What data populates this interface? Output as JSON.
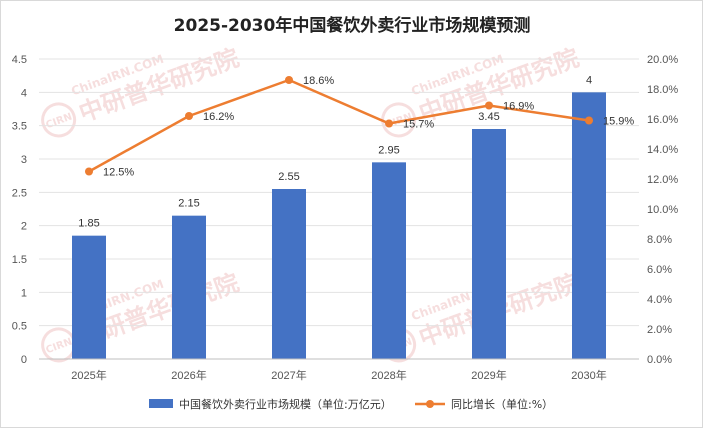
{
  "chart_data": {
    "type": "bar+line",
    "title": "2025-2030年中国餐饮外卖行业市场规模预测",
    "categories": [
      "2025年",
      "2026年",
      "2027年",
      "2028年",
      "2029年",
      "2030年"
    ],
    "series": [
      {
        "name": "中国餐饮外卖行业市场规模（单位:万亿元）",
        "type": "bar",
        "axis": "left",
        "color": "#4472C4",
        "values": [
          1.85,
          2.15,
          2.55,
          2.95,
          3.45,
          4
        ],
        "labels": [
          "1.85",
          "2.15",
          "2.55",
          "2.95",
          "3.45",
          "4"
        ]
      },
      {
        "name": "同比增长（单位:%）",
        "type": "line",
        "axis": "right",
        "color": "#ED7D31",
        "values": [
          12.5,
          16.2,
          18.6,
          15.7,
          16.9,
          15.9
        ],
        "labels": [
          "12.5%",
          "16.2%",
          "18.6%",
          "15.7%",
          "16.9%",
          "15.9%"
        ]
      }
    ],
    "y_left": {
      "range": [
        0,
        4.5
      ],
      "ticks": [
        0,
        0.5,
        1,
        1.5,
        2,
        2.5,
        3,
        3.5,
        4,
        4.5
      ],
      "tick_labels": [
        "0",
        "0.5",
        "1",
        "1.5",
        "2",
        "2.5",
        "3",
        "3.5",
        "4",
        "4.5"
      ]
    },
    "y_right": {
      "range": [
        0,
        20
      ],
      "ticks": [
        0,
        2,
        4,
        6,
        8,
        10,
        12,
        14,
        16,
        18,
        20
      ],
      "tick_labels": [
        "0.0%",
        "2.0%",
        "4.0%",
        "6.0%",
        "8.0%",
        "10.0%",
        "12.0%",
        "14.0%",
        "16.0%",
        "18.0%",
        "20.0%"
      ]
    },
    "grid": "horizontal",
    "legend_position": "bottom-center"
  },
  "watermark": {
    "logo": "CIRN",
    "name": "中研普华研究院",
    "site": "ChinaIRN.COM",
    "color": "#e8a3a3"
  }
}
